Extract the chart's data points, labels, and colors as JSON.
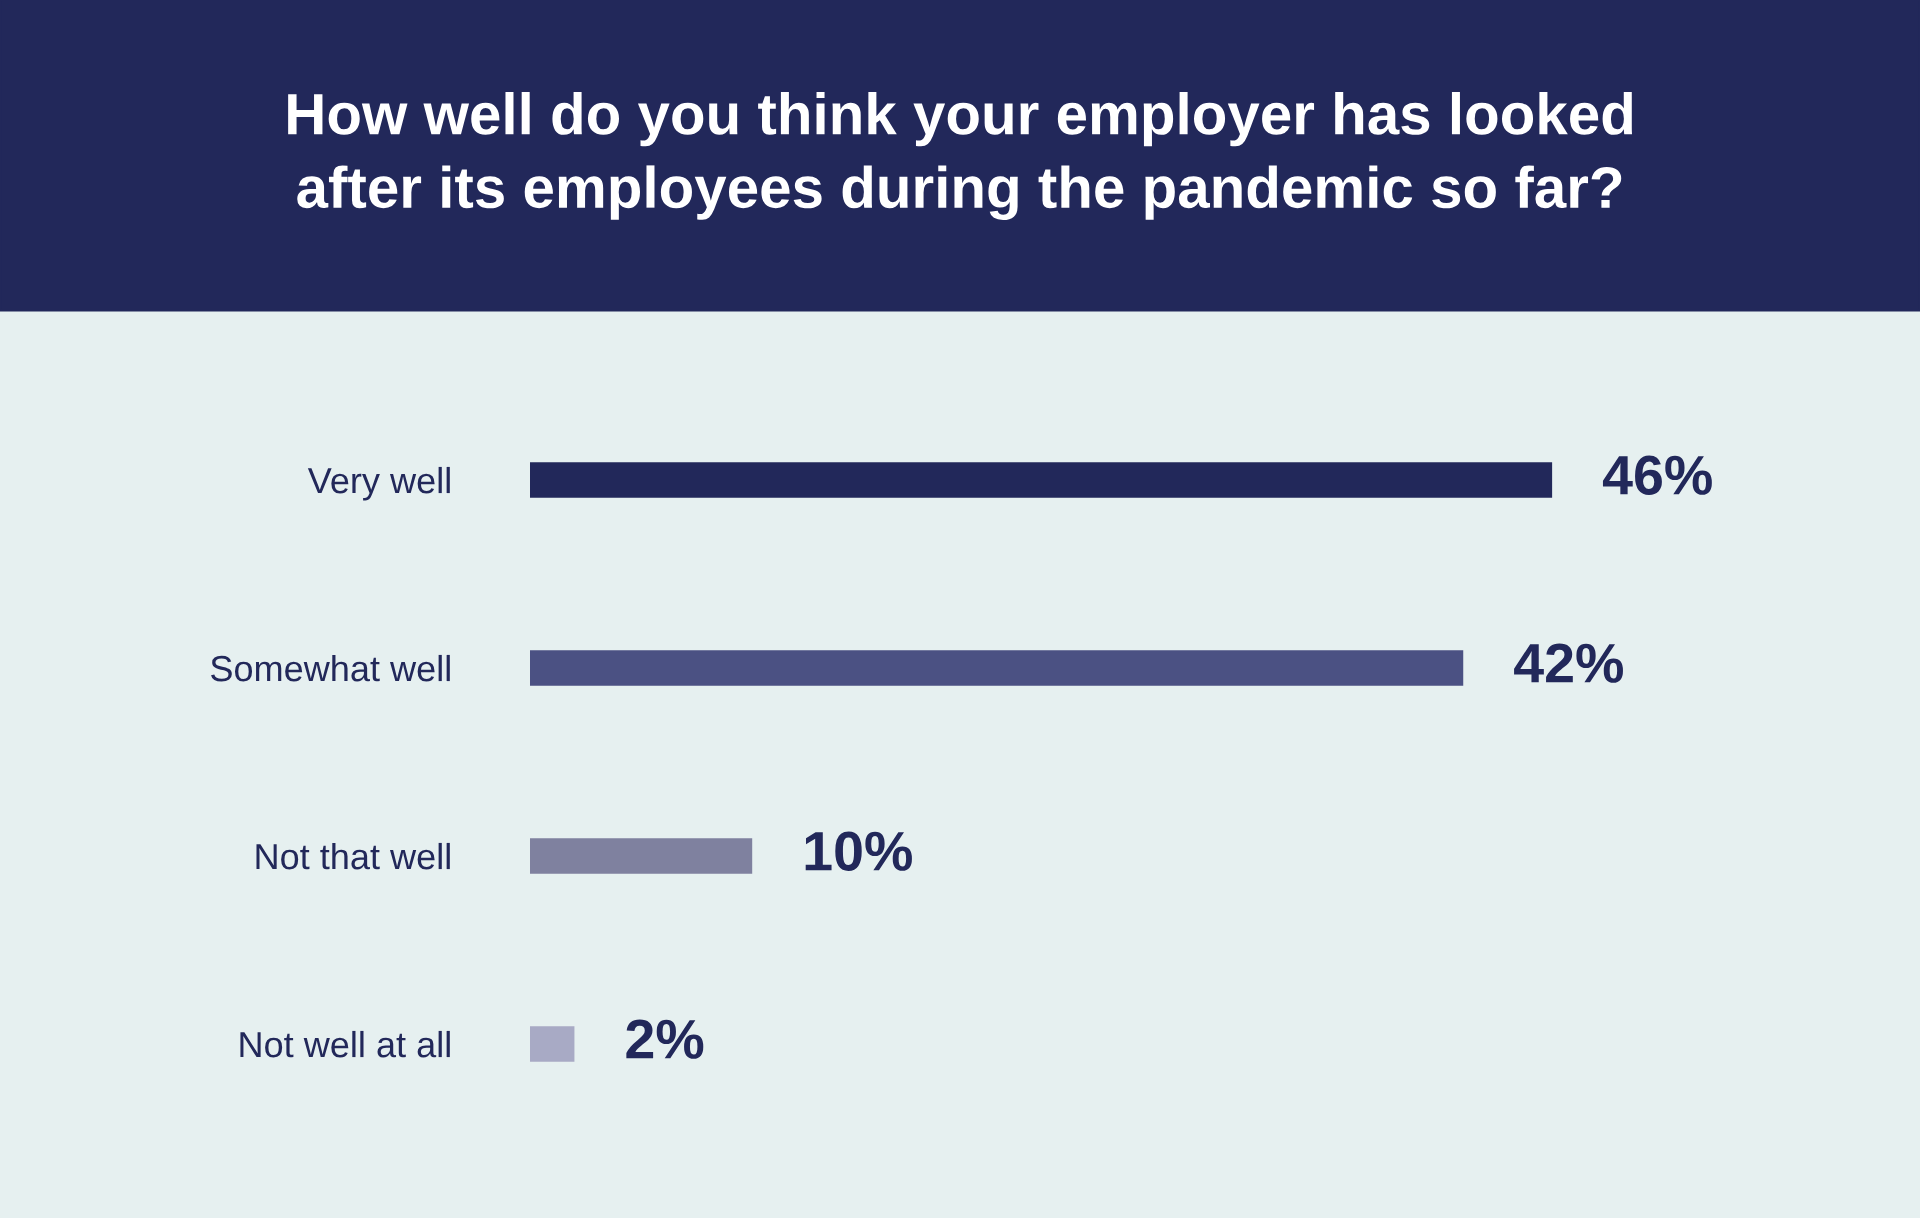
{
  "chart_data": {
    "type": "bar",
    "orientation": "horizontal",
    "title": "How well do you think your employer has looked\nafter its employees during the pandemic so far?",
    "categories": [
      "Very well",
      "Somewhat well",
      "Not that well",
      "Not well at all"
    ],
    "values": [
      46,
      42,
      10,
      2
    ],
    "value_labels": [
      "46%",
      "42%",
      "10%",
      "2%"
    ],
    "colors": [
      "#22285a",
      "#4b5183",
      "#7f819f",
      "#a8aac5"
    ]
  }
}
